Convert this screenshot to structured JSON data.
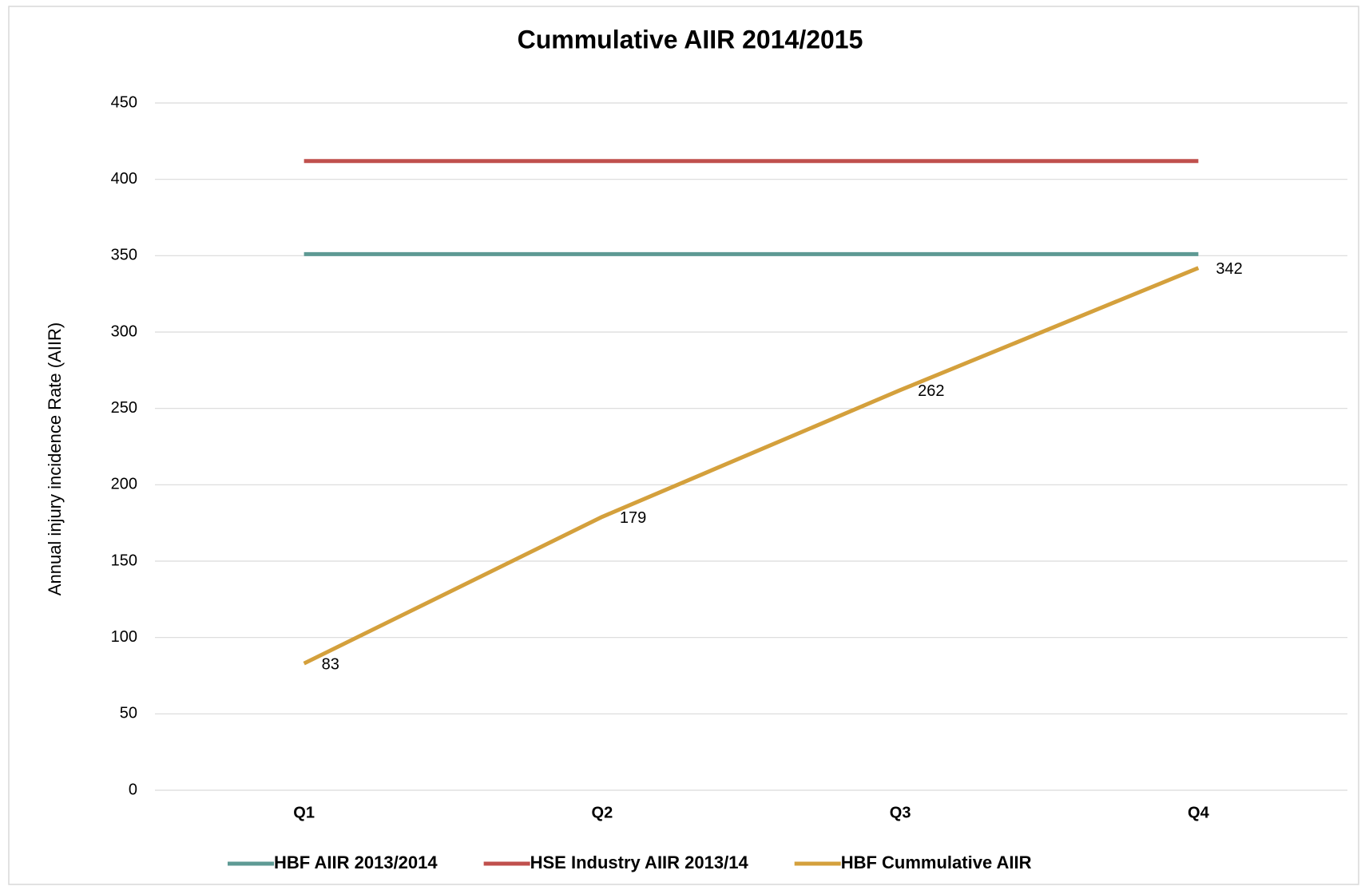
{
  "chart_data": {
    "type": "line",
    "title": "Cummulative AIIR 2014/2015",
    "y_label": "Annual injury incidence Rate (AIIR)",
    "categories": [
      "Q1",
      "Q2",
      "Q3",
      "Q4"
    ],
    "series": [
      {
        "name": "HBF AIIR 2013/2014",
        "color": "#5e9a94",
        "values": [
          351,
          351,
          351,
          351
        ]
      },
      {
        "name": "HSE Industry AIIR 2013/14",
        "color": "#c0504d",
        "values": [
          412,
          412,
          412,
          412
        ]
      },
      {
        "name": "HBF Cummulative AIIR",
        "color": "#d4a03c",
        "values": [
          83,
          179,
          262,
          342
        ],
        "data_labels": true
      }
    ],
    "ylim": [
      0,
      450
    ],
    "yticks": [
      0,
      50,
      100,
      150,
      200,
      250,
      300,
      350,
      400,
      450
    ],
    "grid": true,
    "legend": "bottom"
  }
}
